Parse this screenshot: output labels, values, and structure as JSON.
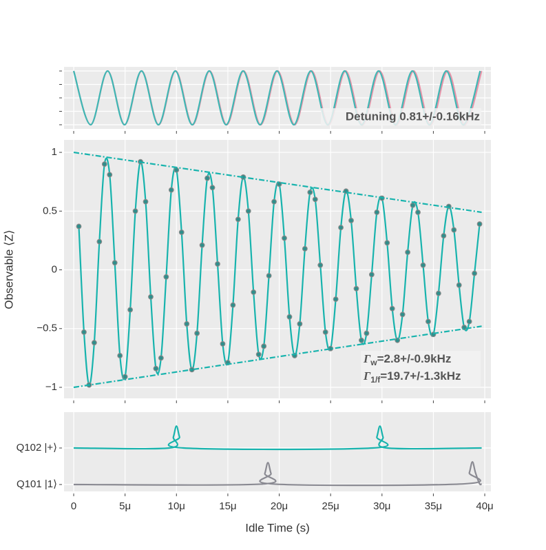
{
  "chart_data": [
    {
      "type": "line",
      "annotation": "Detuning 0.81+/-0.16kHz",
      "ylim": [
        -1.154,
        1.154
      ],
      "yticks": [
        -1,
        -0.5,
        0,
        0.5,
        1
      ],
      "ytick_labels": false,
      "grid": true,
      "series": [
        {
          "color": "#e893a8",
          "smooth": true,
          "x": [
            0,
            1.654e-06,
            3.308e-06,
            4.962e-06,
            6.616e-06,
            8.27e-06,
            9.924e-06,
            1.1578e-05,
            1.3232e-05,
            1.4886e-05,
            1.654e-05,
            1.8194e-05,
            1.9848e-05,
            2.1502e-05,
            2.3156e-05,
            2.481e-05,
            2.6464e-05,
            2.8118e-05,
            2.9772e-05,
            3.1426e-05,
            3.308e-05,
            3.4734e-05,
            3.6388e-05,
            3.8042e-05,
            3.9696e-05
          ],
          "values": [
            1,
            -1,
            1,
            -1,
            1,
            -1,
            1,
            -1,
            1,
            -1,
            1,
            -1,
            1,
            -1,
            1,
            -1,
            1,
            -1,
            1,
            -1,
            1,
            -1,
            1,
            -1,
            1
          ]
        },
        {
          "color": "#3fb7b4",
          "smooth": true,
          "x": [
            0,
            1.648e-06,
            3.296e-06,
            4.944e-06,
            6.592e-06,
            8.24e-06,
            9.888e-06,
            1.1536e-05,
            1.3184e-05,
            1.4832e-05,
            1.648e-05,
            1.8128e-05,
            1.9776e-05,
            2.1424e-05,
            2.3072e-05,
            2.472e-05,
            2.6368e-05,
            2.8016e-05,
            2.9664e-05,
            3.1312e-05,
            3.296e-05,
            3.4608e-05,
            3.6256e-05,
            3.7904e-05,
            3.9552e-05
          ],
          "values": [
            1,
            -1,
            1,
            -1,
            1,
            -1,
            1,
            -1,
            1,
            -1,
            1,
            -1,
            1,
            -1,
            1,
            -1,
            1,
            -1,
            1,
            -1,
            1,
            -1,
            1,
            -1,
            1
          ]
        }
      ]
    },
    {
      "type": "line",
      "y_label": "Observable ⟨Z⟩",
      "ylim": [
        -1.094,
        1.106
      ],
      "yticks": [
        {
          "value": -1,
          "label": "−1"
        },
        {
          "value": -0.5,
          "label": "−0.5"
        },
        0,
        0.5,
        1
      ],
      "grid": true,
      "annotations": [
        {
          "symbol": "Γ",
          "subscript": "w",
          "text": "=2.8+/-0.9kHz"
        },
        {
          "symbol": "Γ",
          "subscript": "1/f",
          "text": "=19.7+/-1.3kHz"
        }
      ],
      "series": [
        {
          "color": "#17b3ad",
          "smooth": true,
          "markers": true,
          "marker_color": "#2f8f8c",
          "x": [
            5e-07,
            1e-06,
            1.5e-06,
            2e-06,
            2.5e-06,
            3e-06,
            3.5e-06,
            4e-06,
            4.5e-06,
            5e-06,
            5.5e-06,
            6e-06,
            6.5e-06,
            7e-06,
            7.5e-06,
            8e-06,
            8.5e-06,
            9e-06,
            9.5e-06,
            1e-05,
            1.05e-05,
            1.1e-05,
            1.15e-05,
            1.2e-05,
            1.25e-05,
            1.3e-05,
            1.35e-05,
            1.4e-05,
            1.45e-05,
            1.5e-05,
            1.55e-05,
            1.6e-05,
            1.65e-05,
            1.7e-05,
            1.75e-05,
            1.8e-05,
            1.85e-05,
            1.9e-05,
            1.95e-05,
            2e-05,
            2.05e-05,
            2.1e-05,
            2.15e-05,
            2.2e-05,
            2.25e-05,
            2.3e-05,
            2.35e-05,
            2.4e-05,
            2.45e-05,
            2.5e-05,
            2.55e-05,
            2.6e-05,
            2.65e-05,
            2.7e-05,
            2.75e-05,
            2.8e-05,
            2.85e-05,
            2.9e-05,
            2.95e-05,
            3e-05,
            3.05e-05,
            3.1e-05,
            3.15e-05,
            3.2e-05,
            3.25e-05,
            3.3e-05,
            3.35e-05,
            3.4e-05,
            3.45e-05,
            3.5e-05,
            3.55e-05,
            3.6e-05,
            3.65e-05,
            3.7e-05,
            3.75e-05,
            3.8e-05,
            3.85e-05,
            3.9e-05,
            3.95e-05
          ],
          "values": [
            0.37,
            -0.53,
            -0.98,
            -0.62,
            0.24,
            0.9,
            0.81,
            0.06,
            -0.73,
            -0.91,
            -0.34,
            0.5,
            0.92,
            0.58,
            -0.23,
            -0.84,
            -0.75,
            -0.06,
            0.68,
            0.85,
            0.32,
            -0.46,
            -0.85,
            -0.54,
            0.21,
            0.78,
            0.7,
            0.05,
            -0.63,
            -0.79,
            -0.3,
            0.43,
            0.79,
            0.5,
            -0.19,
            -0.72,
            -0.65,
            -0.05,
            0.58,
            0.73,
            0.27,
            -0.4,
            -0.73,
            -0.46,
            0.18,
            0.66,
            0.6,
            0.04,
            -0.53,
            -0.67,
            -0.25,
            0.36,
            0.67,
            0.42,
            -0.16,
            -0.6,
            -0.54,
            -0.04,
            0.49,
            0.61,
            0.23,
            -0.33,
            -0.6,
            -0.38,
            0.15,
            0.55,
            0.49,
            0.04,
            -0.44,
            -0.55,
            -0.2,
            0.29,
            0.54,
            0.34,
            -0.13,
            -0.49,
            -0.44,
            -0.03,
            0.39
          ]
        },
        {
          "color": "#17b3ad",
          "dashed": true,
          "x": [
            0,
            3.97e-05
          ],
          "values": [
            1,
            0.49
          ]
        },
        {
          "color": "#17b3ad",
          "dashed": true,
          "x": [
            0,
            3.97e-05
          ],
          "values": [
            -1,
            -0.48
          ]
        }
      ]
    },
    {
      "type": "line",
      "x_label": "Idle Time (s)",
      "xlim": [
        -9.4e-07,
        4.06e-05
      ],
      "xticks": [
        0,
        {
          "value": 5e-06,
          "label": "5μ"
        },
        {
          "value": 1e-05,
          "label": "10μ"
        },
        {
          "value": 1.5e-05,
          "label": "15μ"
        },
        {
          "value": 2e-05,
          "label": "20μ"
        },
        {
          "value": 2.5e-05,
          "label": "25μ"
        },
        {
          "value": 3e-05,
          "label": "30μ"
        },
        {
          "value": 3.5e-05,
          "label": "35μ"
        },
        {
          "value": 4e-05,
          "label": "40μ"
        }
      ],
      "ylim": [
        -0.189,
        1.981
      ],
      "yticks": [
        {
          "value": 0,
          "label": "Q101 |1⟩"
        },
        {
          "value": 1,
          "label": "Q102 |+⟩"
        }
      ],
      "grid": true,
      "series": [
        {
          "color": "#17b3ad",
          "smooth": true,
          "x": [
            0,
            9.3e-06,
            9.7e-06,
            1e-05,
            1.03e-05,
            1.07e-05,
            2.91e-05,
            2.95e-05,
            2.98e-05,
            3.01e-05,
            3.05e-05,
            3.97e-05
          ],
          "values": [
            1,
            1,
            1.3,
            1.6,
            1.3,
            1,
            1,
            1.3,
            1.6,
            1.3,
            1,
            1
          ]
        },
        {
          "color": "#8a8a92",
          "smooth": true,
          "x": [
            0,
            1.82e-05,
            1.86e-05,
            1.89e-05,
            1.92e-05,
            1.96e-05,
            3.81e-05,
            3.85e-05,
            3.88e-05,
            3.91e-05,
            3.95e-05,
            3.97e-05
          ],
          "values": [
            0,
            0.01,
            0.3,
            0.6,
            0.3,
            0.01,
            0.02,
            0.32,
            0.62,
            0.32,
            0.02,
            0.02
          ]
        }
      ]
    }
  ]
}
